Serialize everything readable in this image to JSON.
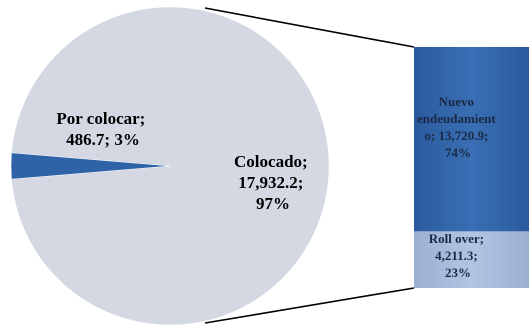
{
  "chart_data": [
    {
      "type": "pie",
      "slices": [
        {
          "label": "Colocado",
          "value": 17932.2,
          "percent": 97,
          "color": "#d4d8e3"
        },
        {
          "label": "Por colocar",
          "value": 486.7,
          "percent": 3,
          "color": "#2f63a8"
        }
      ],
      "data_labels": [
        {
          "lines": [
            "Colocado;",
            "17,932.2;",
            "97%"
          ]
        },
        {
          "lines": [
            "Por colocar;",
            "486.7; 3%"
          ]
        }
      ]
    },
    {
      "type": "bar",
      "stacked": true,
      "segments": [
        {
          "label": "Nuevo endeudamiento",
          "value": 13720.9,
          "percent": 74,
          "color": "#2f63a8"
        },
        {
          "label": "Roll over",
          "value": 4211.3,
          "percent": 23,
          "color": "#a3b9da"
        }
      ],
      "data_labels": [
        {
          "lines": [
            "Nuevo",
            "endeudamient",
            "o; 13,720.9;",
            "74%"
          ]
        },
        {
          "lines": [
            "Roll over;",
            "4,211.3;",
            "23%"
          ]
        }
      ]
    }
  ]
}
